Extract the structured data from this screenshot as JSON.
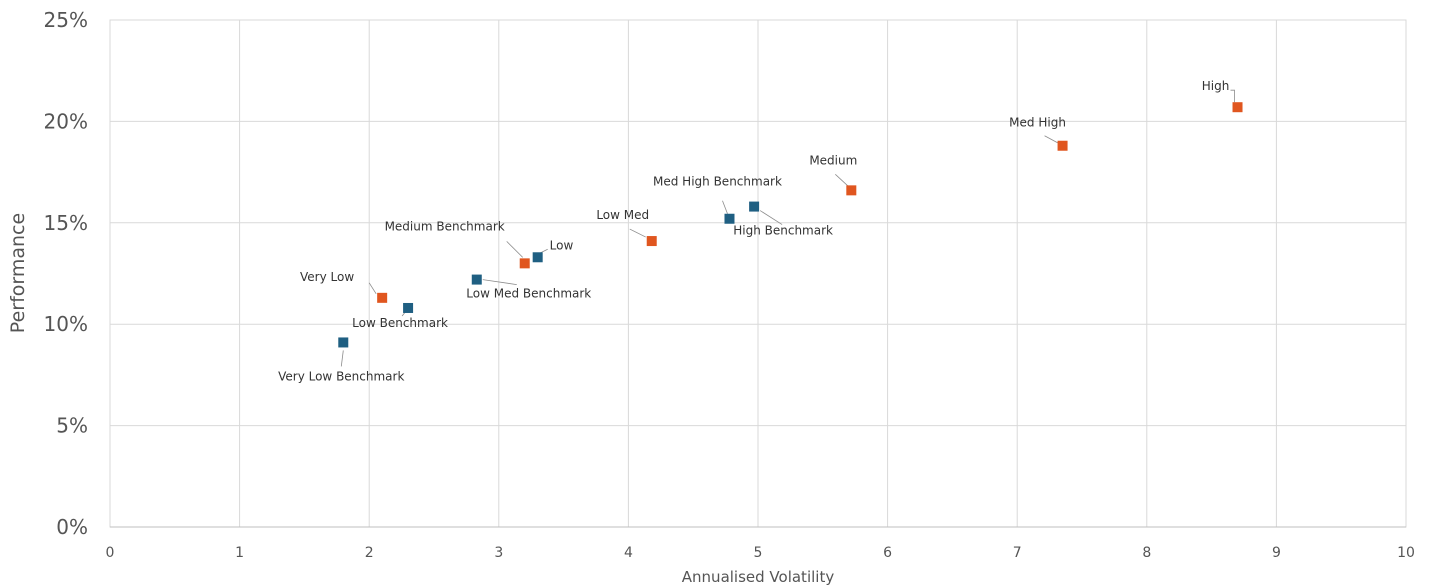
{
  "chart_data": {
    "type": "scatter",
    "xlabel": "Annualised Volatility",
    "ylabel": "Performance",
    "xlim": [
      0,
      10
    ],
    "ylim": [
      0,
      25
    ],
    "x_ticks": [
      "0",
      "1",
      "2",
      "3",
      "4",
      "5",
      "6",
      "7",
      "8",
      "9",
      "10"
    ],
    "y_ticks": [
      "0%",
      "5%",
      "10%",
      "15%",
      "20%",
      "25%"
    ],
    "grid": true,
    "legend": "none",
    "colors": {
      "benchmark": "#1f5f82",
      "portfolio": "#e0561f"
    },
    "points": [
      {
        "label": "Very Low Benchmark",
        "group": "benchmark",
        "x": 1.8,
        "y": 9.1
      },
      {
        "label": "Low Benchmark",
        "group": "benchmark",
        "x": 2.3,
        "y": 10.8
      },
      {
        "label": "Low Med Benchmark",
        "group": "benchmark",
        "x": 2.83,
        "y": 12.2
      },
      {
        "label": "Low",
        "group": "benchmark",
        "x": 3.3,
        "y": 13.3
      },
      {
        "label": "Med High Benchmark",
        "group": "benchmark",
        "x": 4.78,
        "y": 15.2
      },
      {
        "label": "High Benchmark",
        "group": "benchmark",
        "x": 4.97,
        "y": 15.8
      },
      {
        "label": "Very Low",
        "group": "portfolio",
        "x": 2.1,
        "y": 11.3
      },
      {
        "label": "Medium Benchmark",
        "group": "portfolio",
        "x": 3.2,
        "y": 13.0
      },
      {
        "label": "Low Med",
        "group": "portfolio",
        "x": 4.18,
        "y": 14.1
      },
      {
        "label": "Medium",
        "group": "portfolio",
        "x": 5.72,
        "y": 16.6
      },
      {
        "label": "Med High",
        "group": "portfolio",
        "x": 7.35,
        "y": 18.8
      },
      {
        "label": "High",
        "group": "portfolio",
        "x": 8.7,
        "y": 20.7
      }
    ]
  }
}
